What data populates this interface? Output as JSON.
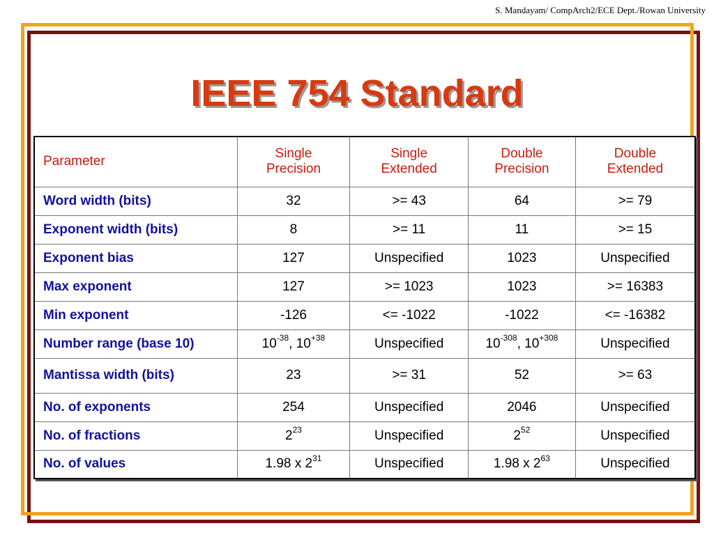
{
  "credit": "S. Mandayam/ CompArch2/ECE Dept./Rowan University",
  "title": "IEEE 754 Standard",
  "table": {
    "headers": {
      "param": "Parameter",
      "c1": {
        "l1": "Single",
        "l2": "Precision"
      },
      "c2": {
        "l1": "Single",
        "l2": "Extended"
      },
      "c3": {
        "l1": "Double",
        "l2": "Precision"
      },
      "c4": {
        "l1": "Double",
        "l2": "Extended"
      }
    },
    "rows": [
      {
        "param": "Word width (bits)",
        "c1": "32",
        "c2": ">= 43",
        "c3": "64",
        "c4": ">= 79"
      },
      {
        "param": "Exponent width (bits)",
        "c1": "8",
        "c2": ">= 11",
        "c3": "11",
        "c4": ">= 15"
      },
      {
        "param": "Exponent bias",
        "c1": "127",
        "c2": "Unspecified",
        "c3": "1023",
        "c4": "Unspecified"
      },
      {
        "param": "Max exponent",
        "c1": "127",
        "c2": ">= 1023",
        "c3": "1023",
        "c4": ">= 16383"
      },
      {
        "param": "Min exponent",
        "c1": "-126",
        "c2": "<= -1022",
        "c3": "-1022",
        "c4": "<= -16382"
      },
      {
        "param": "Number range (base 10)",
        "c1": {
          "a_base": "10",
          "a_exp": "-38",
          "sep": ", ",
          "b_base": "10",
          "b_exp": "+38"
        },
        "c2": "Unspecified",
        "c3": {
          "a_base": "10",
          "a_exp": "-308",
          "sep": ", ",
          "b_base": "10",
          "b_exp": "+308"
        },
        "c4": "Unspecified"
      },
      {
        "param": "Mantissa width (bits)",
        "c1": "23",
        "c2": ">= 31",
        "c3": "52",
        "c4": ">= 63"
      },
      {
        "param": "No. of exponents",
        "c1": "254",
        "c2": "Unspecified",
        "c3": "2046",
        "c4": "Unspecified"
      },
      {
        "param": "No. of fractions",
        "c1": {
          "base": "2",
          "exp": "23"
        },
        "c2": "Unspecified",
        "c3": {
          "base": "2",
          "exp": "52"
        },
        "c4": "Unspecified"
      },
      {
        "param": "No. of values",
        "c1": {
          "base": "1.98 x 2",
          "exp": "31"
        },
        "c2": "Unspecified",
        "c3": {
          "base": "1.98 x 2",
          "exp": "63"
        },
        "c4": "Unspecified"
      }
    ]
  }
}
